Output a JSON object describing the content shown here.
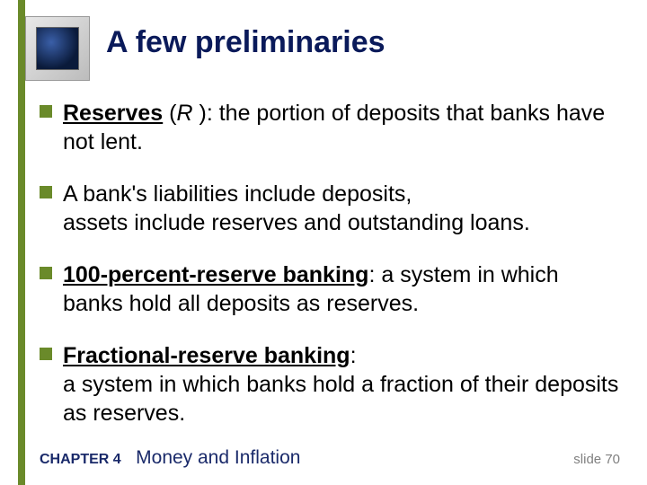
{
  "colors": {
    "accent_green": "#6a8a2a",
    "title_navy": "#0a1a5a",
    "footer_navy": "#1a2a6a",
    "slide_num": "#808080",
    "body_text": "#000000",
    "stripe": "#6a8a2a",
    "bullet_fill": "#6a8a2a"
  },
  "title": {
    "text": "A few preliminaries",
    "fontsize": 34
  },
  "bullets": [
    {
      "term": "Reserves",
      "symbol_prefix": " (",
      "symbol": "R",
      "symbol_suffix": " ):  ",
      "rest": "the portion of deposits that banks have not lent."
    },
    {
      "term": "",
      "rest": "A bank's liabilities include deposits,\nassets include reserves and outstanding loans."
    },
    {
      "term": "100-percent-reserve banking",
      "term_suffix": ":  ",
      "rest": "a system in which banks hold all deposits as reserves."
    },
    {
      "term": "Fractional-reserve banking",
      "term_suffix": ":",
      "rest_newline": true,
      "rest": "a system in which banks hold a fraction of their deposits as reserves."
    }
  ],
  "footer": {
    "chapter_label": "CHAPTER 4",
    "chapter_title": "Money and Inflation",
    "slide_label": "slide 70"
  }
}
